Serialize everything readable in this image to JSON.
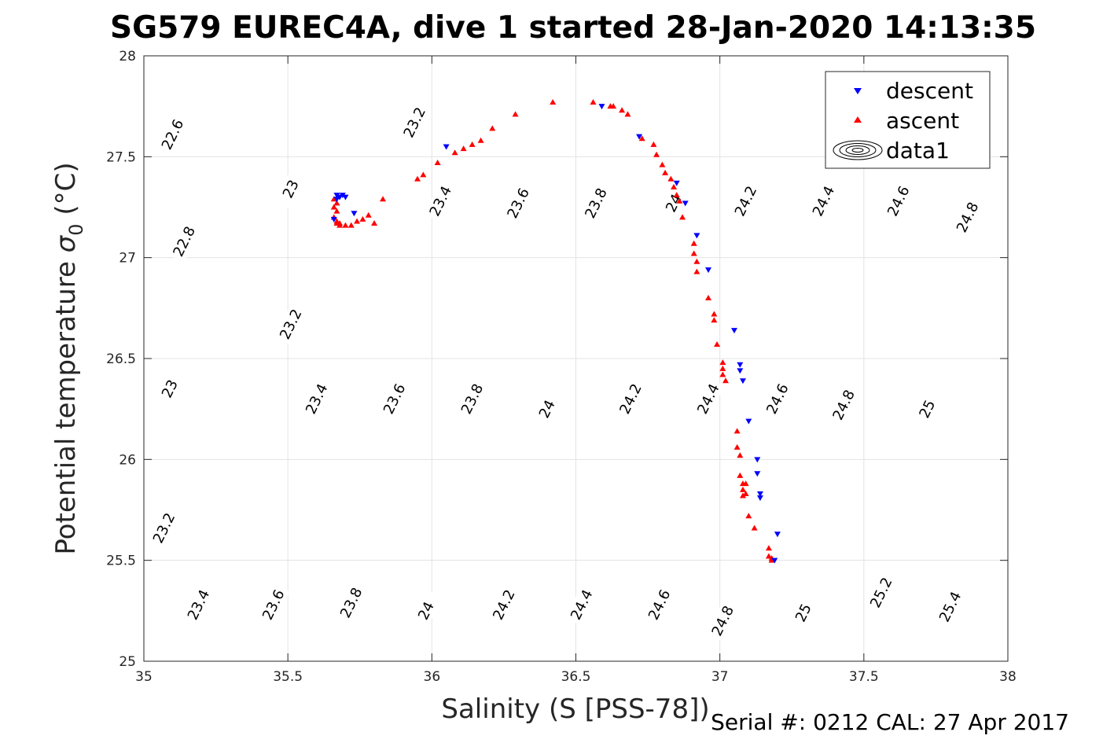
{
  "figure": {
    "title": "SG579 EUREC4A, dive 1 started 28-Jan-2020 14:13:35",
    "xlabel": "Salinity (S [PSS-78])",
    "ylabel_main": "Potential temperature",
    "ylabel_sigma": "σ",
    "ylabel_sub": "0",
    "ylabel_unit": "(°C)",
    "footer": "Serial #: 0212  CAL: 27 Apr 2017"
  },
  "chart_data": {
    "type": "scatter",
    "xlim": [
      35,
      38
    ],
    "ylim": [
      25,
      28
    ],
    "x_ticks": [
      35,
      35.5,
      36,
      36.5,
      37,
      37.5,
      38
    ],
    "x_tick_labels": [
      "35",
      "35.5",
      "36",
      "36.5",
      "37",
      "37.5",
      "38"
    ],
    "y_ticks": [
      25,
      25.5,
      26,
      26.5,
      27,
      27.5,
      28
    ],
    "y_tick_labels": [
      "25",
      "25.5",
      "26",
      "26.5",
      "27",
      "27.5",
      "28"
    ],
    "grid": true,
    "legend_position": "top-right",
    "legend": [
      {
        "label": "descent",
        "marker": "triangle-down",
        "color": "#0000ff"
      },
      {
        "label": "ascent",
        "marker": "triangle-up",
        "color": "#ff0000"
      },
      {
        "label": "data1",
        "marker": "contour",
        "color": "#000000"
      }
    ],
    "contours": {
      "levels": [
        22.6,
        22.8,
        23,
        23.2,
        23.4,
        23.6,
        23.8,
        24,
        24.2,
        24.4,
        24.6,
        24.8,
        25,
        25.2,
        25.4
      ],
      "color": "#000000",
      "labels": [
        {
          "text": "22.6",
          "s": 35.1,
          "t": 27.61
        },
        {
          "text": "22.8",
          "s": 35.14,
          "t": 27.08
        },
        {
          "text": "23",
          "s": 35.51,
          "t": 27.34
        },
        {
          "text": "23.2",
          "s": 35.94,
          "t": 27.67
        },
        {
          "text": "23",
          "s": 35.09,
          "t": 26.35
        },
        {
          "text": "23.2",
          "s": 35.51,
          "t": 26.67
        },
        {
          "text": "23.4",
          "s": 36.03,
          "t": 27.28
        },
        {
          "text": "23.6",
          "s": 36.3,
          "t": 27.27
        },
        {
          "text": "23.8",
          "s": 36.57,
          "t": 27.27
        },
        {
          "text": "24",
          "s": 36.84,
          "t": 27.27
        },
        {
          "text": "24.2",
          "s": 37.09,
          "t": 27.28
        },
        {
          "text": "24.4",
          "s": 37.36,
          "t": 27.28
        },
        {
          "text": "24.6",
          "s": 37.62,
          "t": 27.28
        },
        {
          "text": "24.8",
          "s": 37.86,
          "t": 27.2
        },
        {
          "text": "23.2",
          "s": 35.07,
          "t": 25.66
        },
        {
          "text": "23.4",
          "s": 35.6,
          "t": 26.3
        },
        {
          "text": "23.6",
          "s": 35.87,
          "t": 26.3
        },
        {
          "text": "23.8",
          "s": 36.14,
          "t": 26.3
        },
        {
          "text": "24",
          "s": 36.4,
          "t": 26.25
        },
        {
          "text": "24.2",
          "s": 36.69,
          "t": 26.3
        },
        {
          "text": "24.4",
          "s": 36.96,
          "t": 26.3
        },
        {
          "text": "24.6",
          "s": 37.2,
          "t": 26.3
        },
        {
          "text": "24.8",
          "s": 37.43,
          "t": 26.27
        },
        {
          "text": "25",
          "s": 37.72,
          "t": 26.25
        },
        {
          "text": "23.4",
          "s": 35.19,
          "t": 25.28
        },
        {
          "text": "23.6",
          "s": 35.45,
          "t": 25.28
        },
        {
          "text": "23.8",
          "s": 35.72,
          "t": 25.29
        },
        {
          "text": "24",
          "s": 35.98,
          "t": 25.25
        },
        {
          "text": "24.2",
          "s": 36.25,
          "t": 25.28
        },
        {
          "text": "24.4",
          "s": 36.52,
          "t": 25.28
        },
        {
          "text": "24.6",
          "s": 36.79,
          "t": 25.28
        },
        {
          "text": "24.8",
          "s": 37.01,
          "t": 25.2
        },
        {
          "text": "25",
          "s": 37.29,
          "t": 25.24
        },
        {
          "text": "25.2",
          "s": 37.56,
          "t": 25.34
        },
        {
          "text": "25.4",
          "s": 37.8,
          "t": 25.27
        }
      ]
    },
    "series": [
      {
        "name": "descent",
        "marker": "triangle-down",
        "color": "#0000ff",
        "x": [
          35.67,
          35.68,
          35.69,
          35.7,
          35.67,
          35.66,
          35.73,
          36.05,
          36.59,
          36.72,
          36.85,
          36.88,
          36.92,
          36.96,
          37.05,
          37.07,
          37.07,
          37.08,
          37.1,
          37.13,
          37.13,
          37.14,
          37.14,
          37.2,
          37.19
        ],
        "y": [
          27.31,
          27.3,
          27.31,
          27.3,
          27.29,
          27.19,
          27.22,
          27.55,
          27.75,
          27.6,
          27.37,
          27.27,
          27.11,
          26.94,
          26.64,
          26.47,
          26.44,
          26.39,
          26.19,
          26.0,
          25.93,
          25.83,
          25.81,
          25.63,
          25.5
        ]
      },
      {
        "name": "ascent",
        "marker": "triangle-up",
        "color": "#ff0000",
        "x": [
          35.66,
          35.67,
          35.66,
          35.67,
          35.66,
          35.67,
          35.67,
          35.68,
          35.68,
          35.7,
          35.72,
          35.74,
          35.76,
          35.78,
          35.8,
          35.83,
          35.95,
          35.97,
          36.02,
          36.08,
          36.11,
          36.14,
          36.17,
          36.21,
          36.29,
          36.42,
          36.56,
          36.62,
          36.63,
          36.66,
          36.68,
          36.73,
          36.77,
          36.78,
          36.8,
          36.81,
          36.83,
          36.84,
          36.85,
          36.86,
          36.87,
          36.91,
          36.91,
          36.92,
          36.92,
          36.96,
          36.98,
          36.98,
          36.99,
          37.01,
          37.01,
          37.01,
          37.02,
          37.06,
          37.06,
          37.07,
          37.07,
          37.08,
          37.08,
          37.08,
          37.09,
          37.09,
          37.1,
          37.12,
          37.17,
          37.17,
          37.18,
          37.18
        ],
        "y": [
          27.29,
          27.27,
          27.25,
          27.23,
          27.2,
          27.18,
          27.17,
          27.17,
          27.16,
          27.16,
          27.16,
          27.18,
          27.19,
          27.21,
          27.17,
          27.29,
          27.39,
          27.41,
          27.47,
          27.52,
          27.54,
          27.56,
          27.58,
          27.64,
          27.71,
          27.77,
          27.77,
          27.75,
          27.75,
          27.73,
          27.71,
          27.59,
          27.56,
          27.51,
          27.46,
          27.42,
          27.39,
          27.35,
          27.31,
          27.28,
          27.2,
          27.07,
          27.02,
          26.93,
          26.98,
          26.8,
          26.72,
          26.69,
          26.57,
          26.48,
          26.45,
          26.42,
          26.39,
          26.14,
          26.06,
          26.02,
          25.92,
          25.88,
          25.85,
          25.82,
          25.83,
          25.88,
          25.72,
          25.66,
          25.56,
          25.52,
          25.51,
          25.5
        ]
      }
    ]
  }
}
